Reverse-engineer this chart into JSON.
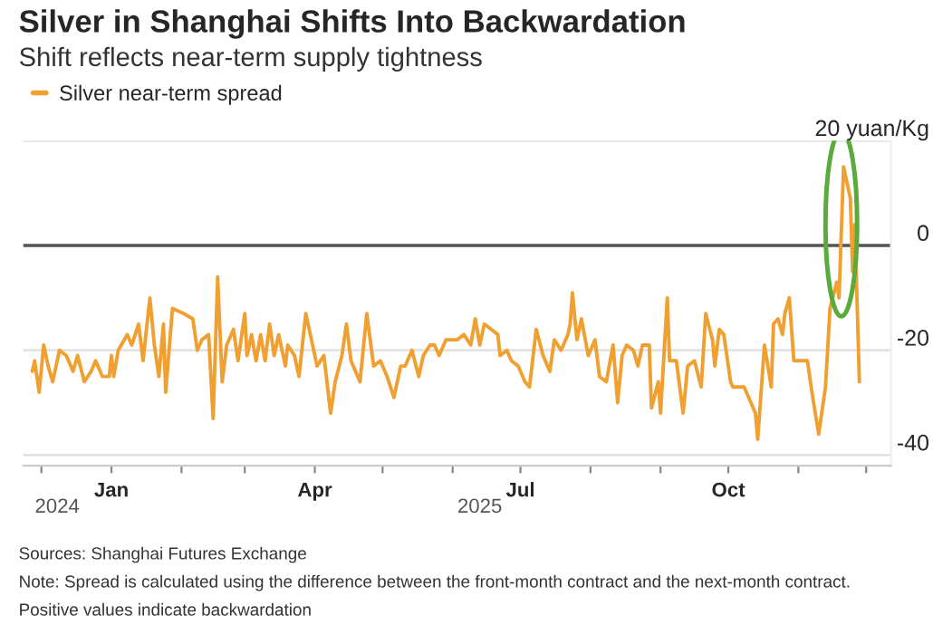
{
  "chart_data": {
    "type": "line",
    "title": "Silver in Shanghai Shifts Into Backwardation",
    "subtitle": "Shift reflects near-term supply tightness",
    "annotations": [
      "Sources: Shanghai Futures Exchange",
      "Note: Spread is calculated using the difference between the front-month contract and the next-month contract.",
      "Positive values indicate backwardation"
    ],
    "x": [
      "2024-11-27",
      "2024-11-28",
      "2024-11-30",
      "2024-12-02",
      "2024-12-04",
      "2024-12-06",
      "2024-12-09",
      "2024-12-12",
      "2024-12-15",
      "2024-12-17",
      "2024-12-20",
      "2024-12-23",
      "2024-12-25",
      "2024-12-28",
      "2024-12-31",
      "2025-01-01",
      "2025-01-02",
      "2025-01-04",
      "2025-01-08",
      "2025-01-10",
      "2025-01-13",
      "2025-01-15",
      "2025-01-18",
      "2025-01-20",
      "2025-01-22",
      "2025-01-24",
      "2025-01-25",
      "2025-01-28",
      "2025-02-02",
      "2025-02-06",
      "2025-02-08",
      "2025-02-10",
      "2025-02-13",
      "2025-02-15",
      "2025-02-17",
      "2025-02-19",
      "2025-02-21",
      "2025-02-24",
      "2025-02-26",
      "2025-03-01",
      "2025-03-02",
      "2025-03-04",
      "2025-03-06",
      "2025-03-08",
      "2025-03-10",
      "2025-03-12",
      "2025-03-14",
      "2025-03-16",
      "2025-03-19",
      "2025-03-20",
      "2025-03-23",
      "2025-03-25",
      "2025-03-28",
      "2025-03-31",
      "2025-04-02",
      "2025-04-05",
      "2025-04-08",
      "2025-04-10",
      "2025-04-13",
      "2025-04-15",
      "2025-04-17",
      "2025-04-21",
      "2025-04-24",
      "2025-04-27",
      "2025-04-30",
      "2025-05-03",
      "2025-05-06",
      "2025-05-09",
      "2025-05-11",
      "2025-05-14",
      "2025-05-17",
      "2025-05-19",
      "2025-05-22",
      "2025-05-24",
      "2025-05-26",
      "2025-05-29",
      "2025-05-31",
      "2025-06-03",
      "2025-06-06",
      "2025-06-09",
      "2025-06-11",
      "2025-06-13",
      "2025-06-15",
      "2025-06-18",
      "2025-06-21",
      "2025-06-22",
      "2025-06-25",
      "2025-06-27",
      "2025-06-30",
      "2025-07-03",
      "2025-07-05",
      "2025-07-08",
      "2025-07-11",
      "2025-07-14",
      "2025-07-16",
      "2025-07-19",
      "2025-07-22",
      "2025-07-23",
      "2025-07-24",
      "2025-07-26",
      "2025-07-28",
      "2025-07-31",
      "2025-08-03",
      "2025-08-05",
      "2025-08-08",
      "2025-08-11",
      "2025-08-13",
      "2025-08-15",
      "2025-08-17",
      "2025-08-20",
      "2025-08-22",
      "2025-08-24",
      "2025-08-27",
      "2025-08-28",
      "2025-08-31",
      "2025-09-01",
      "2025-09-04",
      "2025-09-05",
      "2025-09-08",
      "2025-09-11",
      "2025-09-13",
      "2025-09-16",
      "2025-09-19",
      "2025-09-21",
      "2025-09-24",
      "2025-09-25",
      "2025-09-27",
      "2025-09-29",
      "2025-10-02",
      "2025-10-03",
      "2025-10-08",
      "2025-10-10",
      "2025-10-13",
      "2025-10-14",
      "2025-10-17",
      "2025-10-20",
      "2025-10-21",
      "2025-10-23",
      "2025-10-25",
      "2025-10-26",
      "2025-10-28",
      "2025-10-30",
      "2025-11-01",
      "2025-11-03",
      "2025-11-05",
      "2025-11-07",
      "2025-11-10",
      "2025-11-13",
      "2025-11-15",
      "2025-11-18",
      "2025-11-19",
      "2025-11-21",
      "2025-11-23",
      "2025-11-24",
      "2025-11-25",
      "2025-11-26",
      "2025-11-28"
    ],
    "series": [
      {
        "name": "Silver near-term spread",
        "color": "#f0a030",
        "values": [
          -24,
          -22,
          -28,
          -19,
          -23,
          -26,
          -20,
          -21,
          -24,
          -21,
          -26,
          -24,
          -22,
          -25,
          -25,
          -21,
          -25,
          -20,
          -17,
          -19,
          -15,
          -22,
          -10,
          -19,
          -25,
          -15,
          -28,
          -12,
          -13,
          -14,
          -20,
          -18,
          -17,
          -33,
          -6,
          -26,
          -19,
          -16,
          -22,
          -13,
          -21,
          -17,
          -22,
          -17,
          -22,
          -15,
          -21,
          -17,
          -23,
          -19,
          -21,
          -25,
          -13,
          -19,
          -23,
          -21,
          -32,
          -26,
          -21,
          -15,
          -22,
          -26,
          -13,
          -23,
          -22,
          -25,
          -29,
          -23,
          -23,
          -20,
          -25,
          -21,
          -19,
          -19,
          -21,
          -18,
          -18,
          -18,
          -17,
          -19,
          -14,
          -19,
          -15,
          -16,
          -17,
          -21,
          -20,
          -22,
          -23,
          -26,
          -27,
          -16,
          -21,
          -24,
          -18,
          -20,
          -17,
          -15,
          -9,
          -18,
          -14,
          -21,
          -18,
          -25,
          -26,
          -19,
          -30,
          -21,
          -19,
          -20,
          -23,
          -19,
          -19,
          -31,
          -26,
          -32,
          -10,
          -22,
          -22,
          -32,
          -23,
          -22,
          -27,
          -13,
          -18,
          -23,
          -16,
          -17,
          -26,
          -27,
          -27,
          -29,
          -32,
          -37,
          -19,
          -27,
          -15,
          -14,
          -17,
          -13,
          -10,
          -22,
          -22,
          -22,
          -22,
          -28,
          -36,
          -27,
          -12,
          -7,
          -10,
          15,
          11,
          9,
          -5,
          4,
          -26
        ]
      }
    ],
    "xlim": [
      "2024-11-23",
      "2025-12-12"
    ],
    "xticks": [
      {
        "value": "2024-12-01",
        "label": null
      },
      {
        "value": "2025-01-01",
        "label": "Jan"
      },
      {
        "value": "2025-02-01",
        "label": null
      },
      {
        "value": "2025-03-01",
        "label": null
      },
      {
        "value": "2025-04-01",
        "label": "Apr"
      },
      {
        "value": "2025-05-01",
        "label": null
      },
      {
        "value": "2025-06-01",
        "label": null
      },
      {
        "value": "2025-07-01",
        "label": "Jul"
      },
      {
        "value": "2025-08-01",
        "label": null
      },
      {
        "value": "2025-09-01",
        "label": null
      },
      {
        "value": "2025-10-01",
        "label": "Oct"
      },
      {
        "value": "2025-11-01",
        "label": null
      },
      {
        "value": "2025-12-01",
        "label": null
      }
    ],
    "x2lim": [
      "2024-11-23",
      "2025-12-12"
    ],
    "x2ticks": [
      {
        "value": "2024-12-08",
        "label": "2024"
      },
      {
        "value": "2025-06-13",
        "label": "2025"
      }
    ],
    "ylim": [
      -42,
      20
    ],
    "yticks": [
      -40,
      -20,
      0,
      {
        "value": 20,
        "label": "20 yuan/Kg"
      }
    ],
    "ref_lines": [
      {
        "axis": "y",
        "value": 0,
        "color": "#555555"
      }
    ],
    "grid": "y",
    "legend": "top left",
    "marker": "none",
    "line_style": "solid"
  }
}
